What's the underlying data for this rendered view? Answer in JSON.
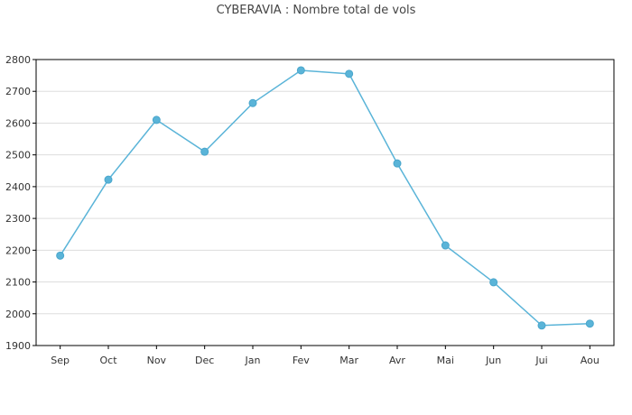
{
  "chart_data": {
    "type": "line",
    "title": "CYBERAVIA : Nombre total de vols",
    "xlabel": "",
    "ylabel": "",
    "categories": [
      "Sep",
      "Oct",
      "Nov",
      "Dec",
      "Jan",
      "Fev",
      "Mar",
      "Avr",
      "Mai",
      "Jun",
      "Jui",
      "Aou"
    ],
    "series": [
      {
        "values": [
          2183,
          2422,
          2610,
          2510,
          2663,
          2766,
          2755,
          2473,
          2215,
          2099,
          1963,
          1969
        ]
      }
    ],
    "ylim": [
      1900,
      2800
    ],
    "yticks": [
      "1900",
      "2000",
      "2100",
      "2200",
      "2300",
      "2400",
      "2500",
      "2600",
      "2700",
      "2800"
    ],
    "grid": true,
    "legend": "none",
    "colors": {
      "line": "#5ab4d8",
      "marker": "#5ab4d8",
      "grid": "#dddddd",
      "axis": "#000000"
    }
  }
}
